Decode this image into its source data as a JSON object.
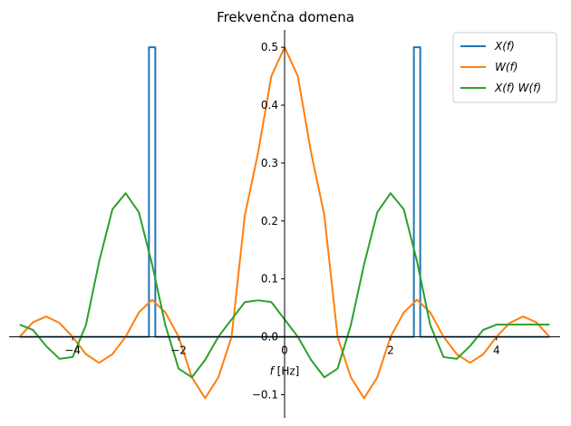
{
  "chart_data": {
    "type": "line",
    "title": "Frekvenčna domena",
    "xlabel": "f [Hz]",
    "xlabel_italic": "f",
    "xlabel_unit": " [Hz]",
    "ylabel": "",
    "xlim": [
      -5.2,
      5.2
    ],
    "ylim": [
      -0.14,
      0.53
    ],
    "xticks": [
      -4,
      -2,
      0,
      2,
      4
    ],
    "xtick_labels": [
      "−4",
      "−2",
      "0",
      "2",
      "4"
    ],
    "yticks": [
      -0.1,
      0.0,
      0.1,
      0.2,
      0.3,
      0.4,
      0.5
    ],
    "ytick_labels": [
      "−0.1",
      "0.0",
      "0.1",
      "0.2",
      "0.3",
      "0.4",
      "0.5"
    ],
    "grid": false,
    "spines": "centered at origin",
    "legend_position": "top-right",
    "series": [
      {
        "name": "X(f)",
        "color": "#1f77b4",
        "x": [
          -5.0,
          -2.56,
          -2.56,
          -2.44,
          -2.44,
          2.44,
          2.44,
          2.56,
          2.56,
          5.0
        ],
        "y": [
          0,
          0,
          0.5,
          0.5,
          0,
          0,
          0.5,
          0.5,
          0,
          0
        ]
      },
      {
        "name": "W(f)",
        "color": "#ff7f0e",
        "x": [
          -5.0,
          -4.75,
          -4.5,
          -4.25,
          -4.0,
          -3.75,
          -3.5,
          -3.25,
          -3.0,
          -2.75,
          -2.5,
          -2.25,
          -2.0,
          -1.75,
          -1.5,
          -1.25,
          -1.0,
          -0.75,
          -0.5,
          -0.25,
          0.0,
          0.25,
          0.5,
          0.75,
          1.0,
          1.25,
          1.5,
          1.75,
          2.0,
          2.25,
          2.5,
          2.75,
          3.0,
          3.25,
          3.5,
          3.75,
          4.0,
          4.25,
          4.5,
          4.75,
          5.0
        ],
        "y": [
          0.0,
          0.025,
          0.035,
          0.024,
          0.0,
          -0.03,
          -0.045,
          -0.03,
          0.0,
          0.042,
          0.064,
          0.042,
          0.0,
          -0.07,
          -0.106,
          -0.07,
          0.0,
          0.21,
          0.318,
          0.45,
          0.5,
          0.45,
          0.318,
          0.21,
          0.0,
          -0.07,
          -0.106,
          -0.07,
          0.0,
          0.042,
          0.064,
          0.042,
          0.0,
          -0.03,
          -0.045,
          -0.03,
          0.0,
          0.024,
          0.035,
          0.025,
          0.0
        ]
      },
      {
        "name": "X(f) W(f)",
        "color": "#2ca02c",
        "x": [
          -5.0,
          -4.75,
          -4.5,
          -4.25,
          -4.0,
          -3.75,
          -3.5,
          -3.25,
          -3.0,
          -2.75,
          -2.5,
          -2.25,
          -2.0,
          -1.75,
          -1.5,
          -1.25,
          -1.0,
          -0.75,
          -0.5,
          -0.25,
          0.0,
          0.25,
          0.5,
          0.75,
          1.0,
          1.25,
          1.5,
          1.75,
          2.0,
          2.25,
          2.5,
          2.75,
          3.0,
          3.25,
          3.5,
          3.75,
          4.0,
          4.25,
          4.5,
          4.75,
          5.0
        ],
        "y": [
          0.021,
          0.012,
          -0.016,
          -0.038,
          -0.035,
          0.02,
          0.13,
          0.22,
          0.248,
          0.215,
          0.125,
          0.02,
          -0.055,
          -0.07,
          -0.04,
          0.0,
          0.03,
          0.06,
          0.063,
          0.06,
          0.03,
          0.0,
          -0.04,
          -0.07,
          -0.055,
          0.02,
          0.125,
          0.215,
          0.248,
          0.22,
          0.13,
          0.02,
          -0.035,
          -0.038,
          -0.016,
          0.012,
          0.021,
          0.021,
          0.021,
          0.021,
          0.021
        ]
      }
    ]
  }
}
